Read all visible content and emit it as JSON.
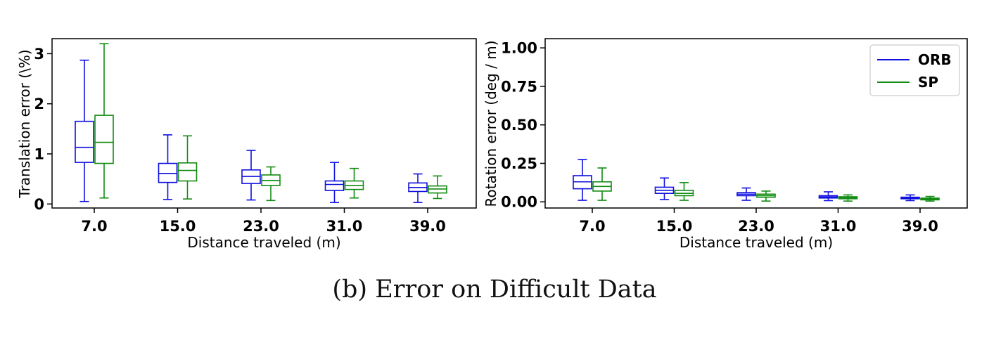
{
  "caption": "(b) Error on Difficult Data",
  "colors": {
    "ORB": "#1010e0",
    "SP": "#118c11"
  },
  "legend": [
    {
      "name": "ORB",
      "color": "#1010e0"
    },
    {
      "name": "SP",
      "color": "#118c11"
    }
  ],
  "chart_data": [
    {
      "type": "box",
      "xlabel": "Distance traveled (m)",
      "ylabel": "Translation error (\\%)",
      "categories": [
        "7.0",
        "15.0",
        "23.0",
        "31.0",
        "39.0"
      ],
      "ylim": [
        -0.08,
        3.3
      ],
      "yticks": [
        0,
        1,
        2,
        3
      ],
      "ytick_labels": [
        "0",
        "1",
        "2",
        "3"
      ],
      "series": [
        {
          "name": "ORB",
          "boxes": [
            {
              "whislo": 0.05,
              "q1": 0.83,
              "med": 1.13,
              "q3": 1.65,
              "whishi": 2.87
            },
            {
              "whislo": 0.09,
              "q1": 0.43,
              "med": 0.61,
              "q3": 0.81,
              "whishi": 1.38
            },
            {
              "whislo": 0.08,
              "q1": 0.41,
              "med": 0.55,
              "q3": 0.68,
              "whishi": 1.07
            },
            {
              "whislo": 0.03,
              "q1": 0.27,
              "med": 0.39,
              "q3": 0.46,
              "whishi": 0.83
            },
            {
              "whislo": 0.03,
              "q1": 0.25,
              "med": 0.33,
              "q3": 0.42,
              "whishi": 0.6
            }
          ]
        },
        {
          "name": "SP",
          "boxes": [
            {
              "whislo": 0.12,
              "q1": 0.81,
              "med": 1.23,
              "q3": 1.77,
              "whishi": 3.2
            },
            {
              "whislo": 0.1,
              "q1": 0.46,
              "med": 0.67,
              "q3": 0.82,
              "whishi": 1.36
            },
            {
              "whislo": 0.07,
              "q1": 0.37,
              "med": 0.47,
              "q3": 0.58,
              "whishi": 0.74
            },
            {
              "whislo": 0.12,
              "q1": 0.29,
              "med": 0.37,
              "q3": 0.46,
              "whishi": 0.71
            },
            {
              "whislo": 0.11,
              "q1": 0.22,
              "med": 0.3,
              "q3": 0.36,
              "whishi": 0.56
            }
          ]
        }
      ]
    },
    {
      "type": "box",
      "xlabel": "Distance traveled (m)",
      "ylabel": "Rotation error (deg / m)",
      "categories": [
        "7.0",
        "15.0",
        "23.0",
        "31.0",
        "39.0"
      ],
      "ylim": [
        -0.04,
        1.06
      ],
      "yticks": [
        0,
        0.25,
        0.5,
        0.75,
        1.0
      ],
      "ytick_labels": [
        "0.00",
        "0.25",
        "0.50",
        "0.75",
        "1.00"
      ],
      "legend_position": "top-right",
      "series": [
        {
          "name": "ORB",
          "boxes": [
            {
              "whislo": 0.01,
              "q1": 0.085,
              "med": 0.13,
              "q3": 0.17,
              "whishi": 0.275
            },
            {
              "whislo": 0.015,
              "q1": 0.055,
              "med": 0.075,
              "q3": 0.095,
              "whishi": 0.155
            },
            {
              "whislo": 0.01,
              "q1": 0.04,
              "med": 0.05,
              "q3": 0.06,
              "whishi": 0.09
            },
            {
              "whislo": 0.008,
              "q1": 0.025,
              "med": 0.032,
              "q3": 0.04,
              "whishi": 0.065
            },
            {
              "whislo": 0.008,
              "q1": 0.02,
              "med": 0.025,
              "q3": 0.03,
              "whishi": 0.045
            }
          ]
        },
        {
          "name": "SP",
          "boxes": [
            {
              "whislo": 0.01,
              "q1": 0.07,
              "med": 0.1,
              "q3": 0.13,
              "whishi": 0.22
            },
            {
              "whislo": 0.01,
              "q1": 0.04,
              "med": 0.055,
              "q3": 0.075,
              "whishi": 0.125
            },
            {
              "whislo": 0.005,
              "q1": 0.03,
              "med": 0.04,
              "q3": 0.05,
              "whishi": 0.07
            },
            {
              "whislo": 0.005,
              "q1": 0.02,
              "med": 0.027,
              "q3": 0.033,
              "whishi": 0.045
            },
            {
              "whislo": 0.005,
              "q1": 0.013,
              "med": 0.018,
              "q3": 0.024,
              "whishi": 0.035
            }
          ]
        }
      ]
    }
  ]
}
